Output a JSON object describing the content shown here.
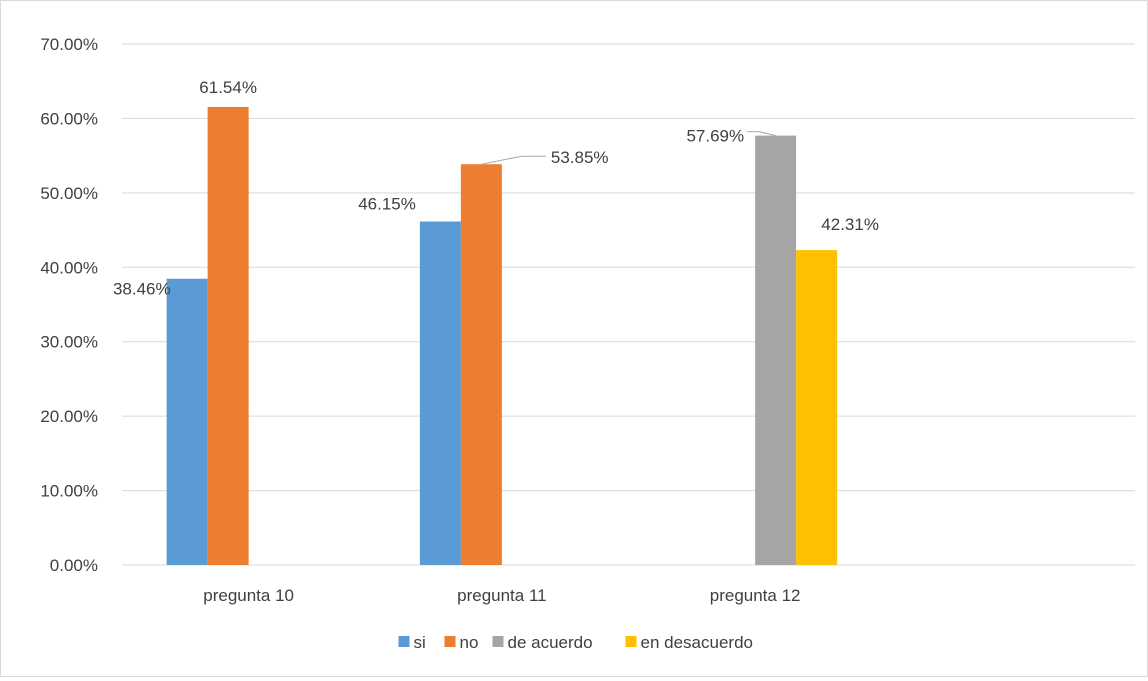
{
  "chart_data": {
    "type": "bar",
    "categories": [
      "pregunta 10",
      "pregunta 11",
      "pregunta 12"
    ],
    "series": [
      {
        "name": "si",
        "color": "#5B9BD5",
        "values": [
          38.46,
          46.15,
          null
        ]
      },
      {
        "name": "no",
        "color": "#ED7D31",
        "values": [
          61.54,
          53.85,
          null
        ]
      },
      {
        "name": "de acuerdo",
        "color": "#A5A5A5",
        "values": [
          null,
          null,
          57.69
        ]
      },
      {
        "name": "en desacuerdo",
        "color": "#FFC000",
        "values": [
          null,
          null,
          42.31
        ]
      }
    ],
    "data_labels": [
      {
        "series": 0,
        "category": 0,
        "text": "38.46%"
      },
      {
        "series": 1,
        "category": 0,
        "text": "61.54%"
      },
      {
        "series": 0,
        "category": 1,
        "text": "46.15%"
      },
      {
        "series": 1,
        "category": 1,
        "text": "53.85%"
      },
      {
        "series": 2,
        "category": 2,
        "text": "57.69%"
      },
      {
        "series": 3,
        "category": 2,
        "text": "42.31%"
      }
    ],
    "yticks": [
      "0.00%",
      "10.00%",
      "20.00%",
      "30.00%",
      "40.00%",
      "50.00%",
      "60.00%",
      "70.00%"
    ],
    "ylim": [
      0,
      70
    ],
    "title": "",
    "xlabel": "",
    "ylabel": "",
    "grid": true,
    "legend_position": "bottom"
  }
}
